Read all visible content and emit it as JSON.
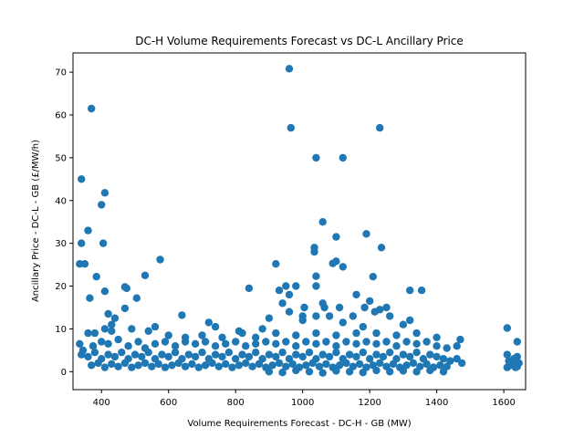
{
  "chart_data": {
    "type": "scatter",
    "title": "DC-H Volume Requirements Forecast vs DC-L Ancillary Price",
    "xlabel": "Volume Requirements Forecast - DC-H - GB (MW)",
    "ylabel": "Ancillary Price - DC-L - GB (£/MW/h)",
    "xlim": [
      315,
      1665
    ],
    "ylim": [
      -4.2,
      74.5
    ],
    "xticks": [
      400,
      600,
      800,
      1000,
      1200,
      1400,
      1600
    ],
    "yticks": [
      0,
      10,
      20,
      30,
      40,
      50,
      60,
      70
    ],
    "grid": false,
    "marker_color": "#1f77b4",
    "points": [
      [
        960,
        70.8
      ],
      [
        370,
        61.5
      ],
      [
        965,
        57
      ],
      [
        1230,
        57
      ],
      [
        1040,
        50
      ],
      [
        1120,
        50
      ],
      [
        340,
        45
      ],
      [
        410,
        41.8
      ],
      [
        400,
        39
      ],
      [
        1060,
        35
      ],
      [
        360,
        33
      ],
      [
        1190,
        32.2
      ],
      [
        1100,
        31.5
      ],
      [
        340,
        30
      ],
      [
        405,
        30
      ],
      [
        1035,
        29
      ],
      [
        1235,
        29
      ],
      [
        1035,
        28
      ],
      [
        1090,
        25.3
      ],
      [
        1120,
        24.5
      ],
      [
        335,
        25.2
      ],
      [
        350,
        25.2
      ],
      [
        575,
        26.2
      ],
      [
        920,
        25.2
      ],
      [
        1100,
        25.8
      ],
      [
        385,
        22.2
      ],
      [
        530,
        22.5
      ],
      [
        1040,
        22.3
      ],
      [
        1210,
        22.2
      ],
      [
        470,
        19.8
      ],
      [
        475,
        19.5
      ],
      [
        840,
        19.5
      ],
      [
        930,
        19
      ],
      [
        950,
        20
      ],
      [
        960,
        18
      ],
      [
        980,
        20
      ],
      [
        1040,
        20
      ],
      [
        1160,
        18
      ],
      [
        1320,
        19
      ],
      [
        1355,
        19
      ],
      [
        365,
        17.2
      ],
      [
        505,
        17.2
      ],
      [
        410,
        18.8
      ],
      [
        940,
        16
      ],
      [
        1005,
        15
      ],
      [
        1060,
        16
      ],
      [
        1065,
        15
      ],
      [
        1110,
        15
      ],
      [
        1200,
        16.5
      ],
      [
        1230,
        14.5
      ],
      [
        1250,
        15
      ],
      [
        1185,
        15
      ],
      [
        1215,
        14
      ],
      [
        470,
        14.8
      ],
      [
        640,
        13.2
      ],
      [
        960,
        14
      ],
      [
        1000,
        13
      ],
      [
        1040,
        13
      ],
      [
        1080,
        13
      ],
      [
        1150,
        13
      ],
      [
        1260,
        13
      ],
      [
        420,
        13.5
      ],
      [
        440,
        12.5
      ],
      [
        430,
        11
      ],
      [
        560,
        10.5
      ],
      [
        720,
        11.5
      ],
      [
        740,
        10.5
      ],
      [
        810,
        9.5
      ],
      [
        880,
        10
      ],
      [
        900,
        12.5
      ],
      [
        1000,
        12
      ],
      [
        1120,
        11.5
      ],
      [
        1180,
        10.5
      ],
      [
        1300,
        11
      ],
      [
        1320,
        12
      ],
      [
        1610,
        10.2
      ],
      [
        360,
        9
      ],
      [
        380,
        9
      ],
      [
        410,
        10
      ],
      [
        430,
        9.5
      ],
      [
        490,
        10
      ],
      [
        540,
        9.5
      ],
      [
        600,
        8.5
      ],
      [
        650,
        8
      ],
      [
        700,
        8.5
      ],
      [
        760,
        8
      ],
      [
        820,
        9
      ],
      [
        860,
        8
      ],
      [
        920,
        9
      ],
      [
        980,
        8.5
      ],
      [
        1040,
        9
      ],
      [
        1100,
        8.5
      ],
      [
        1160,
        9
      ],
      [
        1220,
        9
      ],
      [
        1280,
        8.5
      ],
      [
        1340,
        9
      ],
      [
        1400,
        8
      ],
      [
        1470,
        7.5
      ],
      [
        1640,
        7
      ],
      [
        335,
        6.5
      ],
      [
        345,
        5
      ],
      [
        375,
        6
      ],
      [
        400,
        7
      ],
      [
        420,
        6.5
      ],
      [
        450,
        7.5
      ],
      [
        480,
        6
      ],
      [
        510,
        7
      ],
      [
        530,
        5.5
      ],
      [
        560,
        6.5
      ],
      [
        590,
        7
      ],
      [
        620,
        6
      ],
      [
        650,
        7
      ],
      [
        680,
        6.5
      ],
      [
        710,
        7
      ],
      [
        740,
        6
      ],
      [
        770,
        6.5
      ],
      [
        800,
        7
      ],
      [
        830,
        6
      ],
      [
        860,
        6.5
      ],
      [
        890,
        7
      ],
      [
        920,
        6.5
      ],
      [
        950,
        7
      ],
      [
        980,
        6
      ],
      [
        1010,
        7
      ],
      [
        1040,
        6.5
      ],
      [
        1070,
        7
      ],
      [
        1100,
        6
      ],
      [
        1130,
        7
      ],
      [
        1160,
        6.5
      ],
      [
        1190,
        7
      ],
      [
        1220,
        6.5
      ],
      [
        1250,
        7
      ],
      [
        1280,
        6
      ],
      [
        1310,
        7
      ],
      [
        1340,
        6.5
      ],
      [
        1370,
        7
      ],
      [
        1400,
        6
      ],
      [
        1430,
        5.5
      ],
      [
        1460,
        6
      ],
      [
        340,
        4
      ],
      [
        360,
        3.5
      ],
      [
        380,
        4.5
      ],
      [
        400,
        3
      ],
      [
        420,
        4
      ],
      [
        440,
        3.5
      ],
      [
        460,
        4.5
      ],
      [
        480,
        3
      ],
      [
        500,
        4
      ],
      [
        520,
        3.5
      ],
      [
        540,
        4.5
      ],
      [
        560,
        3
      ],
      [
        580,
        4
      ],
      [
        600,
        3.5
      ],
      [
        620,
        4.5
      ],
      [
        640,
        3
      ],
      [
        660,
        4
      ],
      [
        680,
        3.5
      ],
      [
        700,
        4.5
      ],
      [
        720,
        3
      ],
      [
        740,
        4
      ],
      [
        760,
        3.5
      ],
      [
        780,
        4.5
      ],
      [
        800,
        3
      ],
      [
        820,
        4
      ],
      [
        840,
        3.5
      ],
      [
        860,
        4.5
      ],
      [
        880,
        3
      ],
      [
        900,
        4
      ],
      [
        920,
        3.5
      ],
      [
        940,
        4.5
      ],
      [
        960,
        3
      ],
      [
        980,
        4
      ],
      [
        1000,
        3.5
      ],
      [
        1020,
        4.5
      ],
      [
        1040,
        3
      ],
      [
        1060,
        4
      ],
      [
        1080,
        3.5
      ],
      [
        1100,
        4.5
      ],
      [
        1120,
        3
      ],
      [
        1140,
        4
      ],
      [
        1160,
        3.5
      ],
      [
        1180,
        4.5
      ],
      [
        1200,
        3
      ],
      [
        1220,
        4
      ],
      [
        1240,
        3.5
      ],
      [
        1260,
        4.5
      ],
      [
        1280,
        3
      ],
      [
        1300,
        4
      ],
      [
        1320,
        3.5
      ],
      [
        1340,
        4.5
      ],
      [
        1360,
        3
      ],
      [
        1380,
        4
      ],
      [
        1400,
        3.5
      ],
      [
        1420,
        3
      ],
      [
        1440,
        2.5
      ],
      [
        1460,
        3
      ],
      [
        1475,
        2
      ],
      [
        370,
        1.5
      ],
      [
        390,
        2
      ],
      [
        410,
        1
      ],
      [
        430,
        1.8
      ],
      [
        450,
        1.2
      ],
      [
        470,
        2
      ],
      [
        490,
        1
      ],
      [
        510,
        1.5
      ],
      [
        530,
        2
      ],
      [
        550,
        1.2
      ],
      [
        570,
        1.8
      ],
      [
        590,
        1
      ],
      [
        610,
        1.5
      ],
      [
        630,
        2
      ],
      [
        650,
        1.2
      ],
      [
        670,
        1.8
      ],
      [
        690,
        1
      ],
      [
        710,
        1.5
      ],
      [
        730,
        2
      ],
      [
        750,
        1.2
      ],
      [
        770,
        1.8
      ],
      [
        790,
        1
      ],
      [
        810,
        1.5
      ],
      [
        830,
        2
      ],
      [
        850,
        1.2
      ],
      [
        870,
        1.8
      ],
      [
        890,
        1
      ],
      [
        910,
        1.5
      ],
      [
        930,
        2
      ],
      [
        950,
        1.2
      ],
      [
        970,
        1.8
      ],
      [
        990,
        1
      ],
      [
        1010,
        1.5
      ],
      [
        1030,
        2
      ],
      [
        1050,
        1.2
      ],
      [
        1070,
        1.8
      ],
      [
        1090,
        1
      ],
      [
        1110,
        1.5
      ],
      [
        1130,
        2
      ],
      [
        1150,
        1.2
      ],
      [
        1170,
        1.8
      ],
      [
        1190,
        1
      ],
      [
        1210,
        1.5
      ],
      [
        1230,
        2
      ],
      [
        1250,
        1.2
      ],
      [
        1270,
        1.8
      ],
      [
        1290,
        1
      ],
      [
        1310,
        1.5
      ],
      [
        1330,
        2
      ],
      [
        1350,
        1.2
      ],
      [
        1370,
        1.8
      ],
      [
        1390,
        1
      ],
      [
        1410,
        1.5
      ],
      [
        1430,
        1.2
      ],
      [
        900,
        0
      ],
      [
        940,
        -0.2
      ],
      [
        980,
        0.3
      ],
      [
        1020,
        0
      ],
      [
        1060,
        -0.3
      ],
      [
        1100,
        0.2
      ],
      [
        1140,
        0
      ],
      [
        1180,
        -0.2
      ],
      [
        1220,
        0.3
      ],
      [
        1260,
        0
      ],
      [
        1300,
        0.2
      ],
      [
        1340,
        0
      ],
      [
        1380,
        0.3
      ],
      [
        1420,
        0
      ],
      [
        1610,
        4
      ],
      [
        1615,
        2.5
      ],
      [
        1620,
        1.5
      ],
      [
        1630,
        3
      ],
      [
        1635,
        1
      ],
      [
        1640,
        3.5
      ],
      [
        1645,
        2
      ],
      [
        1610,
        1
      ],
      [
        1625,
        2
      ],
      [
        1640,
        1.2
      ]
    ]
  }
}
